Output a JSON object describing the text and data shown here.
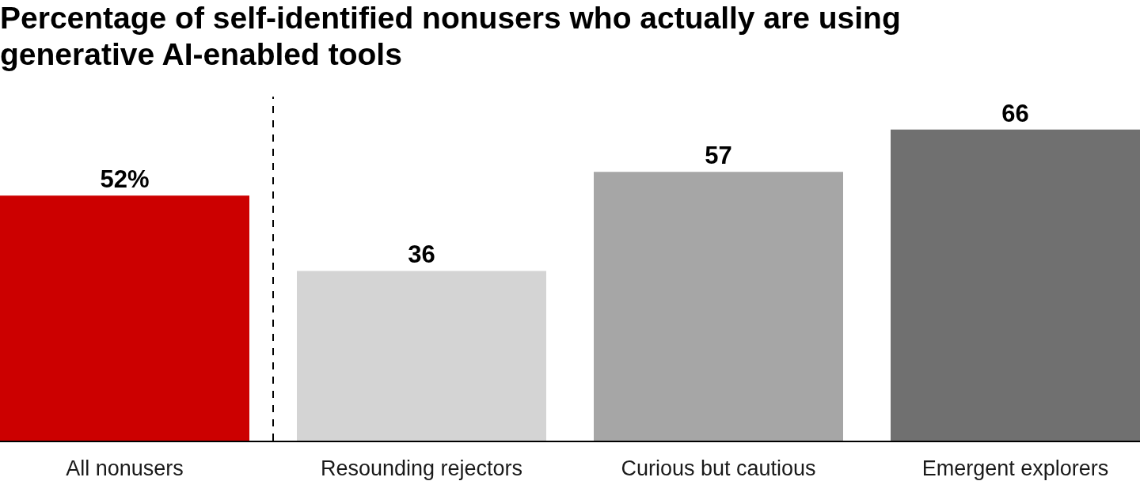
{
  "chart_data": {
    "type": "bar",
    "title": "Percentage of self-identified nonusers who actually are using generative AI-enabled tools",
    "categories": [
      "All nonusers",
      "Resounding rejectors",
      "Curious but cautious",
      "Emergent explorers"
    ],
    "values": [
      52,
      36,
      57,
      66
    ],
    "colors": [
      "#cc0000",
      "#d4d4d4",
      "#a6a6a6",
      "#707070"
    ],
    "value_labels": [
      "52%",
      "36",
      "57",
      "66"
    ],
    "grid": false,
    "legend": false
  }
}
